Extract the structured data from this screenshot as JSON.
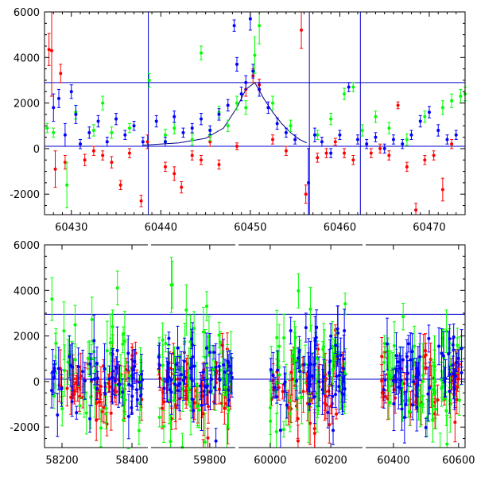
{
  "chart_data": [
    {
      "type": "scatter",
      "title": "",
      "xlabel": "",
      "ylabel": "",
      "xlim": [
        60427,
        60474
      ],
      "ylim": [
        -2900,
        6000
      ],
      "x_ticks": [
        60430,
        60440,
        60450,
        60460,
        60470
      ],
      "y_ticks": [
        -2000,
        0,
        2000,
        4000,
        6000
      ],
      "grid": false,
      "reference_lines": {
        "horizontal": [
          2900,
          100
        ],
        "vertical": [
          60438.6,
          60456.6,
          60462.3
        ]
      },
      "model_curve": {
        "color": "#000080",
        "x": [
          60438,
          60442,
          60445,
          60447,
          60448.5,
          60449.5,
          60450.5,
          60451.5,
          60452.5,
          60453.5,
          60454.5,
          60455.5,
          60456.3
        ],
        "y": [
          150,
          250,
          450,
          900,
          1800,
          2600,
          2900,
          2200,
          1600,
          1100,
          700,
          400,
          250
        ]
      },
      "series": [
        {
          "color": "#ff0000",
          "points": [
            {
              "x": 60427.5,
              "y": 4350,
              "err": 700
            },
            {
              "x": 60427.8,
              "y": 4300,
              "err": 2000
            },
            {
              "x": 60428.8,
              "y": 3300,
              "err": 400
            },
            {
              "x": 60429.3,
              "y": -600,
              "err": 300
            },
            {
              "x": 60428.2,
              "y": -900,
              "err": 800
            },
            {
              "x": 60431.5,
              "y": -500,
              "err": 250
            },
            {
              "x": 60432.5,
              "y": -100,
              "err": 200
            },
            {
              "x": 60433.5,
              "y": -300,
              "err": 200
            },
            {
              "x": 60434.5,
              "y": -600,
              "err": 250
            },
            {
              "x": 60435.5,
              "y": -1600,
              "err": 200
            },
            {
              "x": 60436.5,
              "y": -200,
              "err": 200
            },
            {
              "x": 60437.8,
              "y": -2300,
              "err": 250
            },
            {
              "x": 60438.5,
              "y": 300,
              "err": 300
            },
            {
              "x": 60440.5,
              "y": -800,
              "err": 200
            },
            {
              "x": 60441.5,
              "y": -1100,
              "err": 300
            },
            {
              "x": 60442.3,
              "y": -1700,
              "err": 250
            },
            {
              "x": 60443.5,
              "y": -300,
              "err": 200
            },
            {
              "x": 60444.5,
              "y": -500,
              "err": 200
            },
            {
              "x": 60445.5,
              "y": 300,
              "err": 200
            },
            {
              "x": 60446.5,
              "y": -700,
              "err": 200
            },
            {
              "x": 60448.5,
              "y": 100,
              "err": 150
            },
            {
              "x": 60449.5,
              "y": 2600,
              "err": 300
            },
            {
              "x": 60450.3,
              "y": 3200,
              "err": 300
            },
            {
              "x": 60451.0,
              "y": 2800,
              "err": 250
            },
            {
              "x": 60452.5,
              "y": 400,
              "err": 200
            },
            {
              "x": 60454.0,
              "y": -100,
              "err": 200
            },
            {
              "x": 60455.7,
              "y": 5200,
              "err": 800
            },
            {
              "x": 60456.2,
              "y": -2000,
              "err": 400
            },
            {
              "x": 60457.5,
              "y": -400,
              "err": 200
            },
            {
              "x": 60458.5,
              "y": -200,
              "err": 200
            },
            {
              "x": 60459.5,
              "y": 300,
              "err": 150
            },
            {
              "x": 60460.5,
              "y": -200,
              "err": 200
            },
            {
              "x": 60461.5,
              "y": -500,
              "err": 200
            },
            {
              "x": 60463.5,
              "y": -200,
              "err": 200
            },
            {
              "x": 60464.5,
              "y": 0,
              "err": 200
            },
            {
              "x": 60465.5,
              "y": -300,
              "err": 200
            },
            {
              "x": 60466.5,
              "y": 1900,
              "err": 150
            },
            {
              "x": 60467.5,
              "y": -800,
              "err": 200
            },
            {
              "x": 60468.5,
              "y": -2700,
              "err": 300
            },
            {
              "x": 60469.5,
              "y": -500,
              "err": 200
            },
            {
              "x": 60470.5,
              "y": -300,
              "err": 200
            },
            {
              "x": 60471.5,
              "y": -1800,
              "err": 500
            },
            {
              "x": 60472.5,
              "y": 200,
              "err": 200
            }
          ]
        },
        {
          "color": "#00ff00",
          "points": [
            {
              "x": 60427.3,
              "y": 900,
              "err": 200
            },
            {
              "x": 60428.0,
              "y": 700,
              "err": 200
            },
            {
              "x": 60429.5,
              "y": -1600,
              "err": 1000
            },
            {
              "x": 60430.5,
              "y": 1600,
              "err": 300
            },
            {
              "x": 60432.5,
              "y": 800,
              "err": 250
            },
            {
              "x": 60433.5,
              "y": 2000,
              "err": 300
            },
            {
              "x": 60434.5,
              "y": 700,
              "err": 250
            },
            {
              "x": 60436.5,
              "y": 900,
              "err": 200
            },
            {
              "x": 60438.7,
              "y": 3000,
              "err": 300
            },
            {
              "x": 60440.5,
              "y": 600,
              "err": 250
            },
            {
              "x": 60441.5,
              "y": 900,
              "err": 250
            },
            {
              "x": 60443.5,
              "y": 400,
              "err": 250
            },
            {
              "x": 60444.5,
              "y": 4200,
              "err": 300
            },
            {
              "x": 60445.5,
              "y": 600,
              "err": 250
            },
            {
              "x": 60446.5,
              "y": 1600,
              "err": 250
            },
            {
              "x": 60447.5,
              "y": 1000,
              "err": 250
            },
            {
              "x": 60448.5,
              "y": 2000,
              "err": 300
            },
            {
              "x": 60449.5,
              "y": 1800,
              "err": 300
            },
            {
              "x": 60450.5,
              "y": 4100,
              "err": 800
            },
            {
              "x": 60451.0,
              "y": 5400,
              "err": 800
            },
            {
              "x": 60452.5,
              "y": 2000,
              "err": 300
            },
            {
              "x": 60454.5,
              "y": 1000,
              "err": 250
            },
            {
              "x": 60457.5,
              "y": 600,
              "err": 200
            },
            {
              "x": 60459.0,
              "y": 1300,
              "err": 250
            },
            {
              "x": 60460.5,
              "y": 2400,
              "err": 250
            },
            {
              "x": 60461.5,
              "y": 2700,
              "err": 200
            },
            {
              "x": 60462.5,
              "y": 800,
              "err": 250
            },
            {
              "x": 60464.0,
              "y": 1400,
              "err": 250
            },
            {
              "x": 60465.5,
              "y": 900,
              "err": 250
            },
            {
              "x": 60467.5,
              "y": 400,
              "err": 250
            },
            {
              "x": 60469.5,
              "y": 1400,
              "err": 250
            },
            {
              "x": 60471.5,
              "y": 1800,
              "err": 300
            },
            {
              "x": 60472.5,
              "y": 2100,
              "err": 300
            },
            {
              "x": 60473.5,
              "y": 2300,
              "err": 300
            },
            {
              "x": 60474.0,
              "y": 2400,
              "err": 300
            }
          ]
        },
        {
          "color": "#0000ff",
          "points": [
            {
              "x": 60428.0,
              "y": 1800,
              "err": 600
            },
            {
              "x": 60428.6,
              "y": 2200,
              "err": 400
            },
            {
              "x": 60429.3,
              "y": 600,
              "err": 500
            },
            {
              "x": 60430.0,
              "y": 2500,
              "err": 300
            },
            {
              "x": 60430.5,
              "y": 1500,
              "err": 400
            },
            {
              "x": 60431.0,
              "y": 200,
              "err": 200
            },
            {
              "x": 60432.0,
              "y": 700,
              "err": 250
            },
            {
              "x": 60433.0,
              "y": 1200,
              "err": 250
            },
            {
              "x": 60434.0,
              "y": 300,
              "err": 200
            },
            {
              "x": 60435.0,
              "y": 1300,
              "err": 250
            },
            {
              "x": 60436.0,
              "y": 600,
              "err": 200
            },
            {
              "x": 60437.0,
              "y": 1000,
              "err": 200
            },
            {
              "x": 60438.0,
              "y": 300,
              "err": 200
            },
            {
              "x": 60439.5,
              "y": 1200,
              "err": 250
            },
            {
              "x": 60440.5,
              "y": 300,
              "err": 200
            },
            {
              "x": 60441.5,
              "y": 1400,
              "err": 250
            },
            {
              "x": 60442.5,
              "y": 700,
              "err": 200
            },
            {
              "x": 60443.5,
              "y": 900,
              "err": 200
            },
            {
              "x": 60444.5,
              "y": 1300,
              "err": 250
            },
            {
              "x": 60445.5,
              "y": 800,
              "err": 200
            },
            {
              "x": 60446.5,
              "y": 1500,
              "err": 250
            },
            {
              "x": 60447.5,
              "y": 1900,
              "err": 250
            },
            {
              "x": 60448.2,
              "y": 5400,
              "err": 250
            },
            {
              "x": 60448.5,
              "y": 3700,
              "err": 300
            },
            {
              "x": 60449.0,
              "y": 2400,
              "err": 300
            },
            {
              "x": 60449.5,
              "y": 2900,
              "err": 300
            },
            {
              "x": 60450.0,
              "y": 5700,
              "err": 500
            },
            {
              "x": 60450.3,
              "y": 3400,
              "err": 300
            },
            {
              "x": 60451.0,
              "y": 2600,
              "err": 300
            },
            {
              "x": 60452.0,
              "y": 1800,
              "err": 250
            },
            {
              "x": 60453.0,
              "y": 1100,
              "err": 250
            },
            {
              "x": 60454.0,
              "y": 700,
              "err": 200
            },
            {
              "x": 60455.0,
              "y": 400,
              "err": 200
            },
            {
              "x": 60456.5,
              "y": -1500,
              "err": 1500
            },
            {
              "x": 60457.2,
              "y": 600,
              "err": 300
            },
            {
              "x": 60458.0,
              "y": 300,
              "err": 200
            },
            {
              "x": 60459.0,
              "y": -200,
              "err": 200
            },
            {
              "x": 60460.0,
              "y": 600,
              "err": 200
            },
            {
              "x": 60461.0,
              "y": 2700,
              "err": 200
            },
            {
              "x": 60462.0,
              "y": 400,
              "err": 200
            },
            {
              "x": 60463.0,
              "y": 200,
              "err": 200
            },
            {
              "x": 60464.0,
              "y": 500,
              "err": 200
            },
            {
              "x": 60465.0,
              "y": 0,
              "err": 200
            },
            {
              "x": 60466.0,
              "y": 400,
              "err": 200
            },
            {
              "x": 60467.0,
              "y": 200,
              "err": 200
            },
            {
              "x": 60468.0,
              "y": 600,
              "err": 200
            },
            {
              "x": 60469.0,
              "y": 1200,
              "err": 250
            },
            {
              "x": 60470.0,
              "y": 1600,
              "err": 250
            },
            {
              "x": 60471.0,
              "y": 800,
              "err": 250
            },
            {
              "x": 60472.0,
              "y": 400,
              "err": 200
            },
            {
              "x": 60473.0,
              "y": 600,
              "err": 200
            }
          ]
        }
      ]
    },
    {
      "type": "scatter",
      "title": "",
      "xlabel": "",
      "ylabel": "",
      "ylim": [
        -2900,
        6000
      ],
      "y_ticks": [
        -2000,
        0,
        2000,
        4000,
        6000
      ],
      "grid": false,
      "x_ticks": [
        "58200",
        "58400",
        "59800",
        "60000",
        "60200",
        "60400",
        "60600"
      ],
      "reference_lines": {
        "horizontal": [
          2950,
          100
        ]
      },
      "segments": [
        {
          "xlim": [
            58150,
            58450
          ],
          "data_range": [
            58170,
            58430
          ]
        },
        {
          "xlim": [
            59600,
            59890
          ],
          "data_range": [
            59630,
            59875
          ]
        },
        {
          "xlim": [
            59890,
            60310
          ],
          "data_range": [
            60000,
            60250
          ]
        },
        {
          "xlim": [
            60310,
            60620
          ],
          "data_range": [
            60360,
            60610
          ]
        }
      ],
      "series": [
        {
          "color": "#ff0000",
          "center": -150,
          "scatter_sd": 800,
          "err_typical": 500
        },
        {
          "color": "#00ff00",
          "center": 300,
          "scatter_sd": 1200,
          "err_typical": 700
        },
        {
          "color": "#0000ff",
          "center": 200,
          "scatter_sd": 900,
          "err_typical": 600
        }
      ]
    }
  ]
}
